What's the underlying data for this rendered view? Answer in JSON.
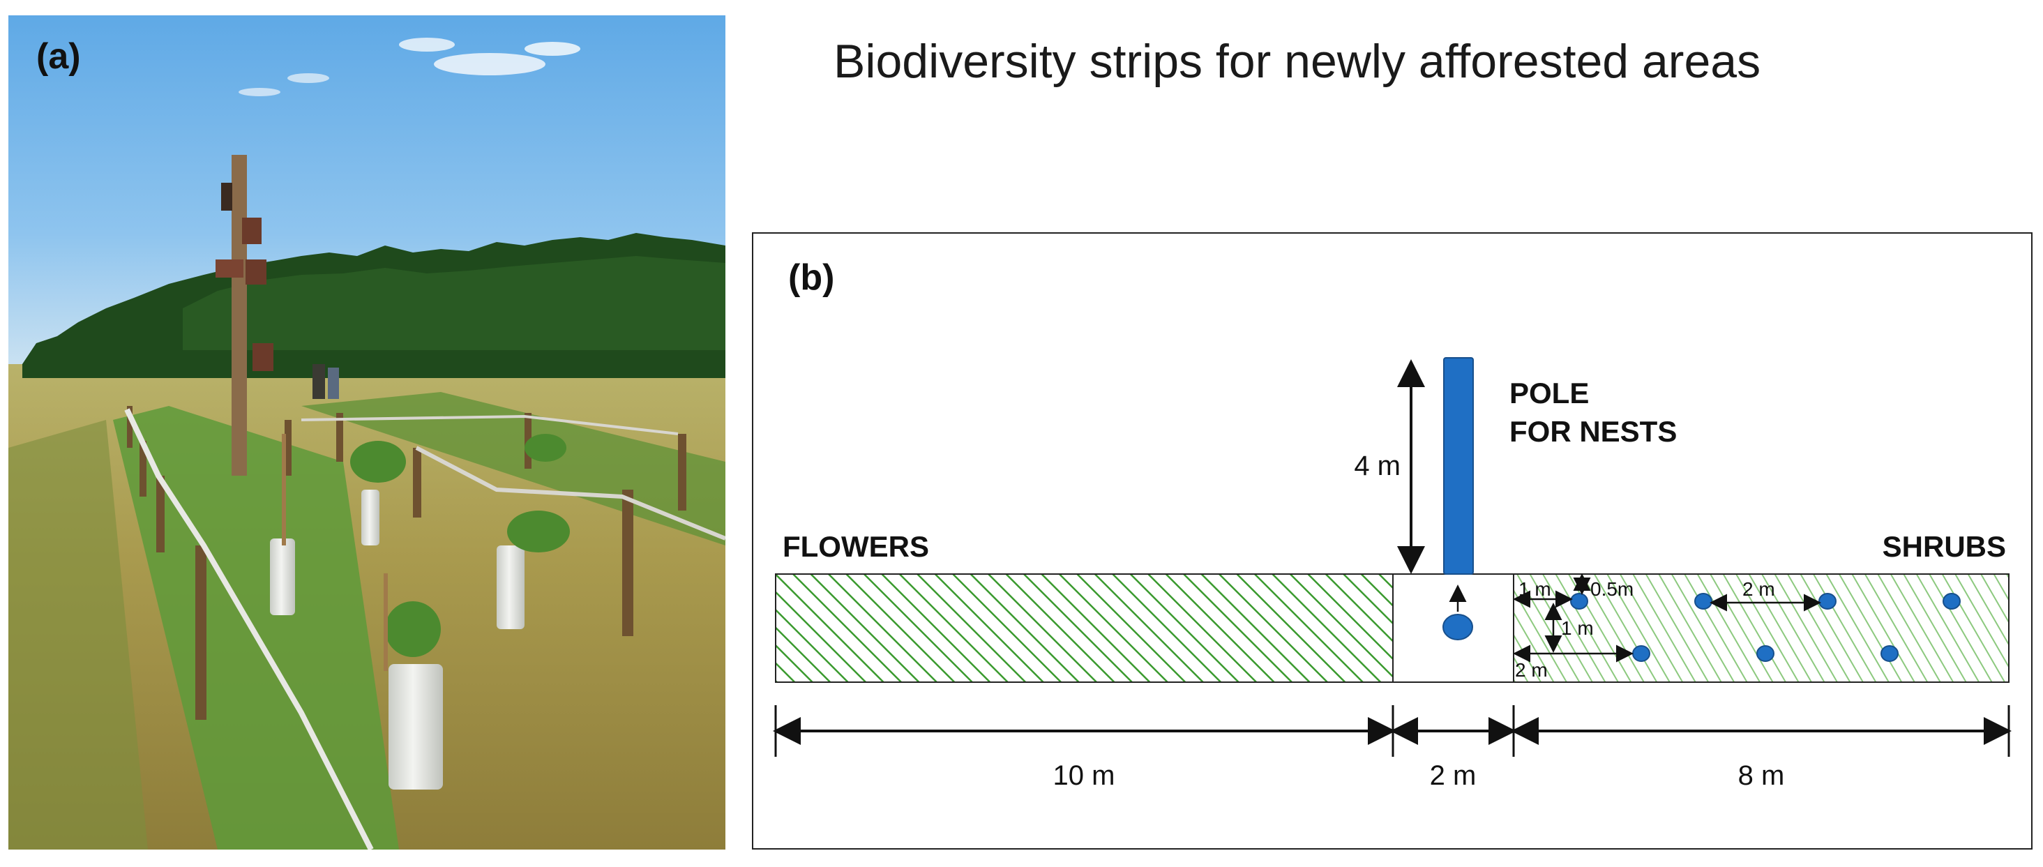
{
  "title": "Biodiversity strips for newly afforested areas",
  "panel_a": {
    "label": "(a)"
  },
  "panel_b": {
    "label": "(b)",
    "pole_label_line1": "POLE",
    "pole_label_line2": "FOR NESTS",
    "pole_height": "4 m",
    "flowers_label": "FLOWERS",
    "shrubs_label": "SHRUBS",
    "spacing_1m_edge": "1 m",
    "spacing_05m": "0.5m",
    "spacing_2m_between": "2 m",
    "spacing_1m_rows": "1 m",
    "spacing_2m_offset": "2 m",
    "width_flowers": "10 m",
    "width_pole": "2 m",
    "width_shrubs": "8 m"
  },
  "colors": {
    "flower_hatch": "#3a9a2e",
    "shrub_hatch": "#8cc97e",
    "pole_blue": "#1f6fc4",
    "frame": "#222222"
  }
}
